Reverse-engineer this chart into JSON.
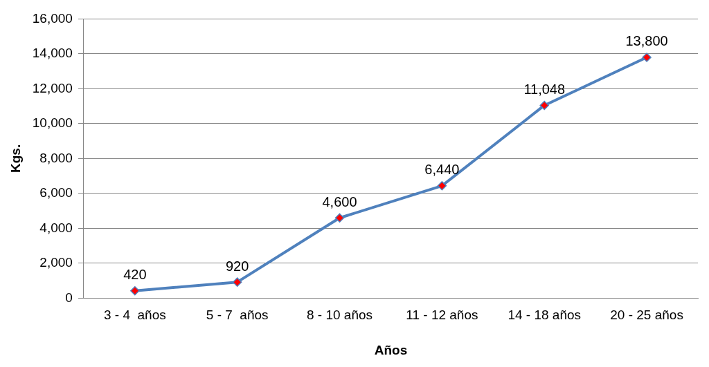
{
  "chart_data": {
    "type": "line",
    "xlabel": "Años",
    "ylabel": "Kgs.",
    "categories": [
      "3 - 4  años",
      "5 - 7  años",
      "8 - 10 años",
      "11 - 12 años",
      "14 - 18 años",
      "20 - 25 años"
    ],
    "series": [
      {
        "color": "#4f81bd",
        "values": [
          420,
          920,
          4600,
          6440,
          11048,
          13800
        ],
        "value_labels": [
          "420",
          "920",
          "4,600",
          "6,440",
          "11,048",
          "13,800"
        ]
      }
    ],
    "ylim": [
      0,
      16000
    ],
    "yticks": [
      0,
      {
        "value": 2000,
        "label": "2,000"
      },
      {
        "value": 4000,
        "label": "4,000"
      },
      {
        "value": 6000,
        "label": "6,000"
      },
      {
        "value": 8000,
        "label": "8,000"
      },
      {
        "value": 10000,
        "label": "10,000"
      },
      {
        "value": 12000,
        "label": "12,000"
      },
      {
        "value": 14000,
        "label": "14,000"
      },
      {
        "value": 16000,
        "label": "16,000"
      }
    ],
    "grid": "y",
    "legend": false,
    "marker": "diamond",
    "line_style": "solid"
  }
}
